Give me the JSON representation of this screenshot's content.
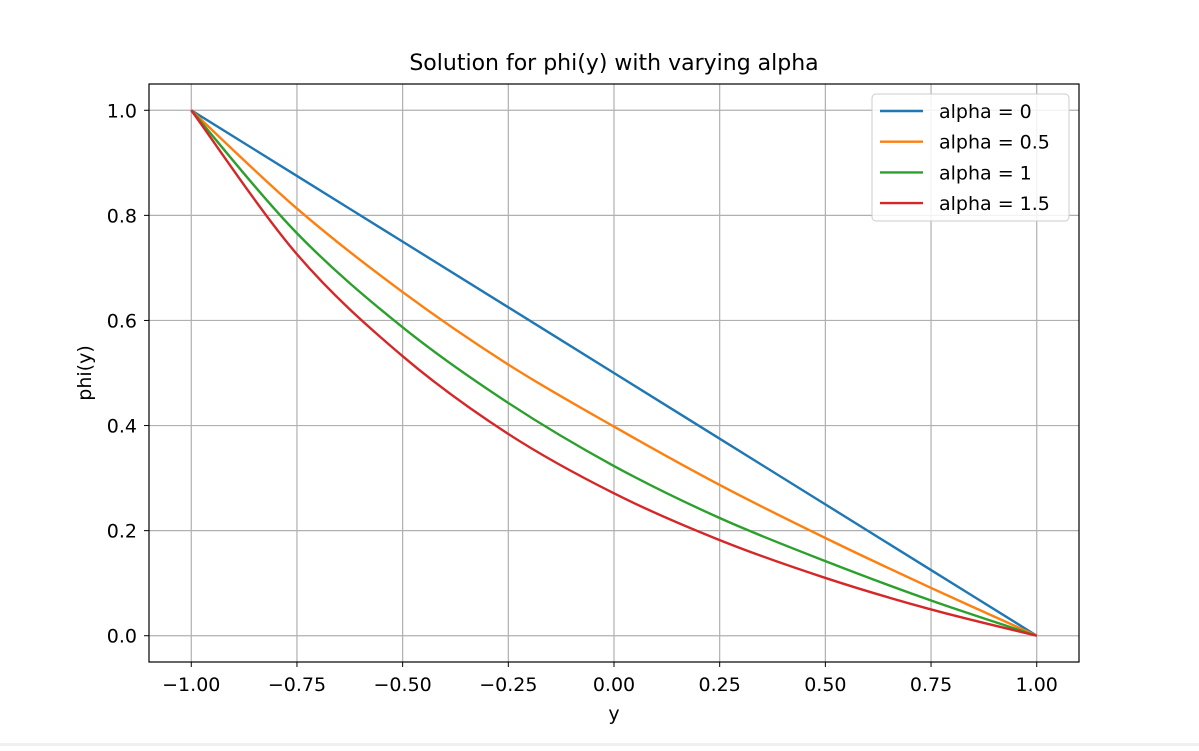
{
  "chart_data": {
    "type": "line",
    "title": "Solution for phi(y) with varying alpha",
    "xlabel": "y",
    "ylabel": "phi(y)",
    "xlim": [
      -1.1,
      1.1
    ],
    "ylim": [
      -0.05,
      1.05
    ],
    "xticks": [
      -1.0,
      -0.75,
      -0.5,
      -0.25,
      0.0,
      0.25,
      0.5,
      0.75,
      1.0
    ],
    "xtick_labels": [
      "−1.00",
      "−0.75",
      "−0.50",
      "−0.25",
      "0.00",
      "0.25",
      "0.50",
      "0.75",
      "1.00"
    ],
    "yticks": [
      0.0,
      0.2,
      0.4,
      0.6,
      0.8,
      1.0
    ],
    "ytick_labels": [
      "0.0",
      "0.2",
      "0.4",
      "0.6",
      "0.8",
      "1.0"
    ],
    "grid": true,
    "legend_position": "top-right",
    "x": [
      -1.0,
      -0.75,
      -0.5,
      -0.25,
      0.0,
      0.25,
      0.5,
      0.75,
      1.0
    ],
    "series": [
      {
        "name": "alpha = 0",
        "color": "#1f77b4",
        "values": [
          1.0,
          0.875,
          0.75,
          0.625,
          0.5,
          0.375,
          0.25,
          0.125,
          0.0
        ]
      },
      {
        "name": "alpha = 0.5",
        "color": "#ff7f0e",
        "values": [
          1.0,
          0.813,
          0.654,
          0.516,
          0.398,
          0.287,
          0.186,
          0.091,
          0.0
        ]
      },
      {
        "name": "alpha = 1",
        "color": "#2ca02c",
        "values": [
          1.0,
          0.766,
          0.587,
          0.443,
          0.323,
          0.224,
          0.142,
          0.067,
          0.0
        ]
      },
      {
        "name": "alpha = 1.5",
        "color": "#d62728",
        "values": [
          1.0,
          0.726,
          0.532,
          0.384,
          0.271,
          0.182,
          0.11,
          0.05,
          0.0
        ]
      }
    ]
  }
}
